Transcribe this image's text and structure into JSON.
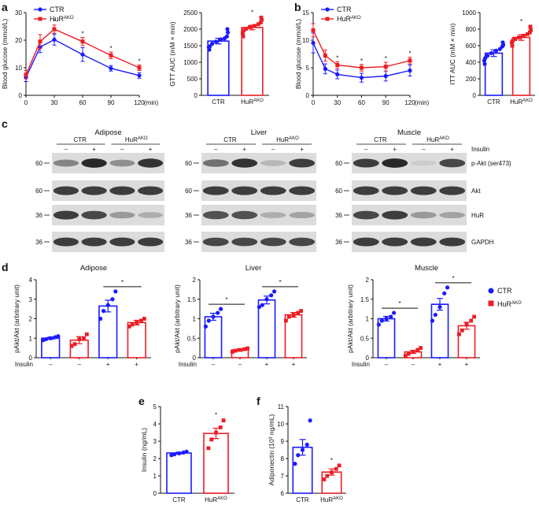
{
  "colors": {
    "ctr": "#1a1aff",
    "ako": "#ee1c24",
    "axis": "#111111"
  },
  "panel_labels": {
    "a": "a",
    "b": "b",
    "c": "c",
    "d": "d",
    "e": "e",
    "f": "f"
  },
  "legend": {
    "ctr": "CTR",
    "ako_base": "HuR",
    "ako_sup": "AKO"
  },
  "western": {
    "titles": [
      "Adipose",
      "Liver",
      "Muscle"
    ],
    "group_labels": [
      "CTR",
      "HuR",
      "AKO"
    ],
    "minus": "–",
    "plus": "+",
    "insulin_label": "Insulin",
    "row_labels": [
      "p-Akt (ser473)",
      "Akt",
      "HuR",
      "GAPDH"
    ],
    "mw": [
      "60",
      "60",
      "36",
      "36"
    ],
    "intensity": [
      [
        [
          0.5,
          0.95,
          0.45,
          0.9
        ],
        [
          0.6,
          0.9,
          0.25,
          0.85
        ],
        [
          0.85,
          0.95,
          0.15,
          0.8
        ]
      ],
      [
        [
          0.85,
          0.85,
          0.85,
          0.85
        ],
        [
          0.85,
          0.85,
          0.85,
          0.85
        ],
        [
          0.85,
          0.85,
          0.85,
          0.85
        ]
      ],
      [
        [
          0.85,
          0.8,
          0.4,
          0.3
        ],
        [
          0.75,
          0.75,
          0.3,
          0.35
        ],
        [
          0.8,
          0.85,
          0.4,
          0.35
        ]
      ],
      [
        [
          0.85,
          0.85,
          0.85,
          0.85
        ],
        [
          0.8,
          0.8,
          0.8,
          0.8
        ],
        [
          0.85,
          0.85,
          0.85,
          0.85
        ]
      ]
    ]
  },
  "chart_data": [
    {
      "id": "a_gtt",
      "type": "line",
      "xlabel": "(min)",
      "ylabel": "Blood glucose (mmol/L)",
      "x": [
        0,
        15,
        30,
        60,
        90,
        120
      ],
      "xlim": [
        0,
        120
      ],
      "ylim": [
        0,
        30
      ],
      "xticks": [
        0,
        30,
        60,
        90,
        120
      ],
      "yticks": [
        0,
        10,
        20,
        30
      ],
      "series": [
        {
          "name": "CTR",
          "values": [
            6.5,
            17.5,
            20.2,
            14.8,
            9.8,
            7.2
          ],
          "err": [
            1.5,
            2.0,
            2.0,
            2.5,
            1.0,
            1.0
          ]
        },
        {
          "name": "HuRAKO",
          "values": [
            7.5,
            19.5,
            24.0,
            19.5,
            14.5,
            10.0
          ],
          "err": [
            1.5,
            2.5,
            1.5,
            1.5,
            1.2,
            1.0
          ]
        }
      ],
      "significance": [
        {
          "x": 30,
          "label": "*"
        },
        {
          "x": 60,
          "label": "*"
        },
        {
          "x": 90,
          "label": "*"
        },
        {
          "x": 120,
          "label": "*"
        }
      ]
    },
    {
      "id": "a_auc",
      "type": "bar",
      "ylabel": "GTT AUC (mM × min)",
      "ylim": [
        0,
        2500
      ],
      "yticks": [
        0,
        500,
        1000,
        1500,
        2000,
        2500
      ],
      "categories": [
        "CTR",
        "HuRAKO"
      ],
      "values": [
        1640,
        2050
      ],
      "err": [
        85,
        70
      ],
      "points": [
        [
          1380,
          1450,
          1480,
          1560,
          1620,
          1690,
          1720,
          1780,
          1900,
          2000
        ],
        [
          1780,
          1880,
          1960,
          2010,
          2060,
          2100,
          2150,
          2200,
          2280,
          2350
        ]
      ],
      "significance": [
        {
          "cat": 1,
          "label": "*"
        }
      ]
    },
    {
      "id": "b_itt",
      "type": "line",
      "xlabel": "(min)",
      "ylabel": "Blood glucose (mmol/L)",
      "x": [
        0,
        15,
        30,
        60,
        90,
        120
      ],
      "xlim": [
        0,
        120
      ],
      "ylim": [
        0,
        15
      ],
      "xticks": [
        0,
        30,
        60,
        90,
        120
      ],
      "yticks": [
        0,
        5,
        10,
        15
      ],
      "series": [
        {
          "name": "CTR",
          "values": [
            9.5,
            4.8,
            3.8,
            3.2,
            3.5,
            4.5
          ],
          "err": [
            1.8,
            0.9,
            0.8,
            0.8,
            0.9,
            1.0
          ]
        },
        {
          "name": "HuRAKO",
          "values": [
            11.8,
            7.2,
            5.5,
            5.0,
            5.2,
            6.3
          ],
          "err": [
            1.2,
            1.0,
            0.6,
            0.6,
            0.8,
            0.6
          ]
        }
      ],
      "significance": [
        {
          "x": 30,
          "label": "*"
        },
        {
          "x": 60,
          "label": "*"
        },
        {
          "x": 90,
          "label": "*"
        },
        {
          "x": 120,
          "label": "*"
        }
      ]
    },
    {
      "id": "b_auc",
      "type": "bar",
      "ylabel": "ITT AUC (mM × min)",
      "ylim": [
        0,
        1000
      ],
      "yticks": [
        0,
        200,
        400,
        600,
        800,
        1000
      ],
      "categories": [
        "CTR",
        "HuRAKO"
      ],
      "values": [
        510,
        700
      ],
      "err": [
        40,
        35
      ],
      "points": [
        [
          380,
          420,
          450,
          480,
          510,
          540,
          560,
          590,
          610,
          640
        ],
        [
          600,
          640,
          660,
          680,
          700,
          720,
          740,
          760,
          790,
          830
        ]
      ],
      "significance": [
        {
          "cat": 1,
          "label": "*"
        }
      ]
    },
    {
      "id": "d_adipose",
      "type": "bar",
      "title": "Adipose",
      "ylabel": "pAkt/Akt (arbitrary unit)",
      "ylim": [
        0,
        4
      ],
      "yticks": [
        0,
        1,
        2,
        3,
        4
      ],
      "categories": [
        "CTR",
        "HuRAKO",
        "CTR",
        "HuRAKO"
      ],
      "insulin": [
        "–",
        "–",
        "+",
        "+"
      ],
      "values": [
        1.0,
        0.9,
        2.65,
        1.8
      ],
      "err": [
        0.06,
        0.18,
        0.3,
        0.12
      ],
      "points": [
        [
          0.9,
          0.95,
          1.0,
          1.05,
          1.1
        ],
        [
          0.6,
          0.7,
          0.95,
          1.0,
          1.2
        ],
        [
          2.0,
          2.4,
          2.7,
          3.0,
          3.4
        ],
        [
          1.6,
          1.7,
          1.8,
          1.9,
          2.0
        ]
      ],
      "brackets": [
        {
          "from": 2,
          "to": 3,
          "label": "*"
        }
      ]
    },
    {
      "id": "d_liver",
      "type": "bar",
      "title": "Liver",
      "ylabel": "pAkt/Akt (arbitrary unit)",
      "ylim": [
        0,
        2.0
      ],
      "yticks": [
        0,
        0.5,
        1.0,
        1.5,
        2.0
      ],
      "categories": [
        "CTR",
        "HuRAKO",
        "CTR",
        "HuRAKO"
      ],
      "insulin": [
        "–",
        "–",
        "+",
        "+"
      ],
      "values": [
        1.05,
        0.2,
        1.48,
        1.1
      ],
      "err": [
        0.09,
        0.03,
        0.1,
        0.06
      ],
      "points": [
        [
          0.8,
          0.95,
          1.05,
          1.15,
          1.25
        ],
        [
          0.15,
          0.18,
          0.2,
          0.22,
          0.24
        ],
        [
          1.3,
          1.35,
          1.5,
          1.6,
          1.7
        ],
        [
          0.95,
          1.05,
          1.1,
          1.15,
          1.2
        ]
      ],
      "brackets": [
        {
          "from": 0,
          "to": 1,
          "label": "*"
        },
        {
          "from": 2,
          "to": 3,
          "label": "*"
        }
      ]
    },
    {
      "id": "d_muscle",
      "type": "bar",
      "title": "Muscle",
      "ylabel": "pAkt/Akt (arbitrary unit)",
      "ylim": [
        0,
        2.0
      ],
      "yticks": [
        0,
        0.5,
        1.0,
        1.5,
        2.0
      ],
      "categories": [
        "CTR",
        "HuRAKO",
        "CTR",
        "HuRAKO"
      ],
      "insulin": [
        "–",
        "–",
        "+",
        "+"
      ],
      "values": [
        1.0,
        0.15,
        1.37,
        0.82
      ],
      "err": [
        0.06,
        0.04,
        0.15,
        0.09
      ],
      "points": [
        [
          0.85,
          0.95,
          1.0,
          1.05,
          1.15
        ],
        [
          0.05,
          0.1,
          0.15,
          0.2,
          0.25
        ],
        [
          0.95,
          1.1,
          1.3,
          1.65,
          1.8
        ],
        [
          0.6,
          0.7,
          0.85,
          0.95,
          1.05
        ]
      ],
      "brackets": [
        {
          "from": 0,
          "to": 1,
          "label": "*"
        },
        {
          "from": 2,
          "to": 3,
          "label": "*"
        }
      ]
    },
    {
      "id": "e_insulin",
      "type": "bar",
      "ylabel": "Insulin (ng/mL)",
      "ylim": [
        0,
        5
      ],
      "yticks": [
        0,
        1,
        2,
        3,
        4,
        5
      ],
      "categories": [
        "CTR",
        "HuRAKO"
      ],
      "values": [
        2.32,
        3.45
      ],
      "err": [
        0.05,
        0.3
      ],
      "points": [
        [
          2.2,
          2.25,
          2.3,
          2.35,
          2.4
        ],
        [
          2.6,
          3.1,
          3.5,
          3.8,
          4.2
        ]
      ],
      "significance": [
        {
          "cat": 1,
          "label": "*"
        }
      ]
    },
    {
      "id": "f_adiponectin",
      "type": "bar",
      "ylabel": "Adiponectin (10³ ng/mL)",
      "ylim": [
        6,
        11
      ],
      "yticks": [
        6,
        7,
        8,
        9,
        10,
        11
      ],
      "categories": [
        "CTR",
        "HuRAKO"
      ],
      "values": [
        8.65,
        7.22
      ],
      "err": [
        0.45,
        0.18
      ],
      "points": [
        [
          7.7,
          8.2,
          8.5,
          8.8,
          10.2
        ],
        [
          6.8,
          7.0,
          7.2,
          7.4,
          7.6
        ]
      ],
      "significance": [
        {
          "cat": 1,
          "label": "*"
        }
      ]
    }
  ]
}
